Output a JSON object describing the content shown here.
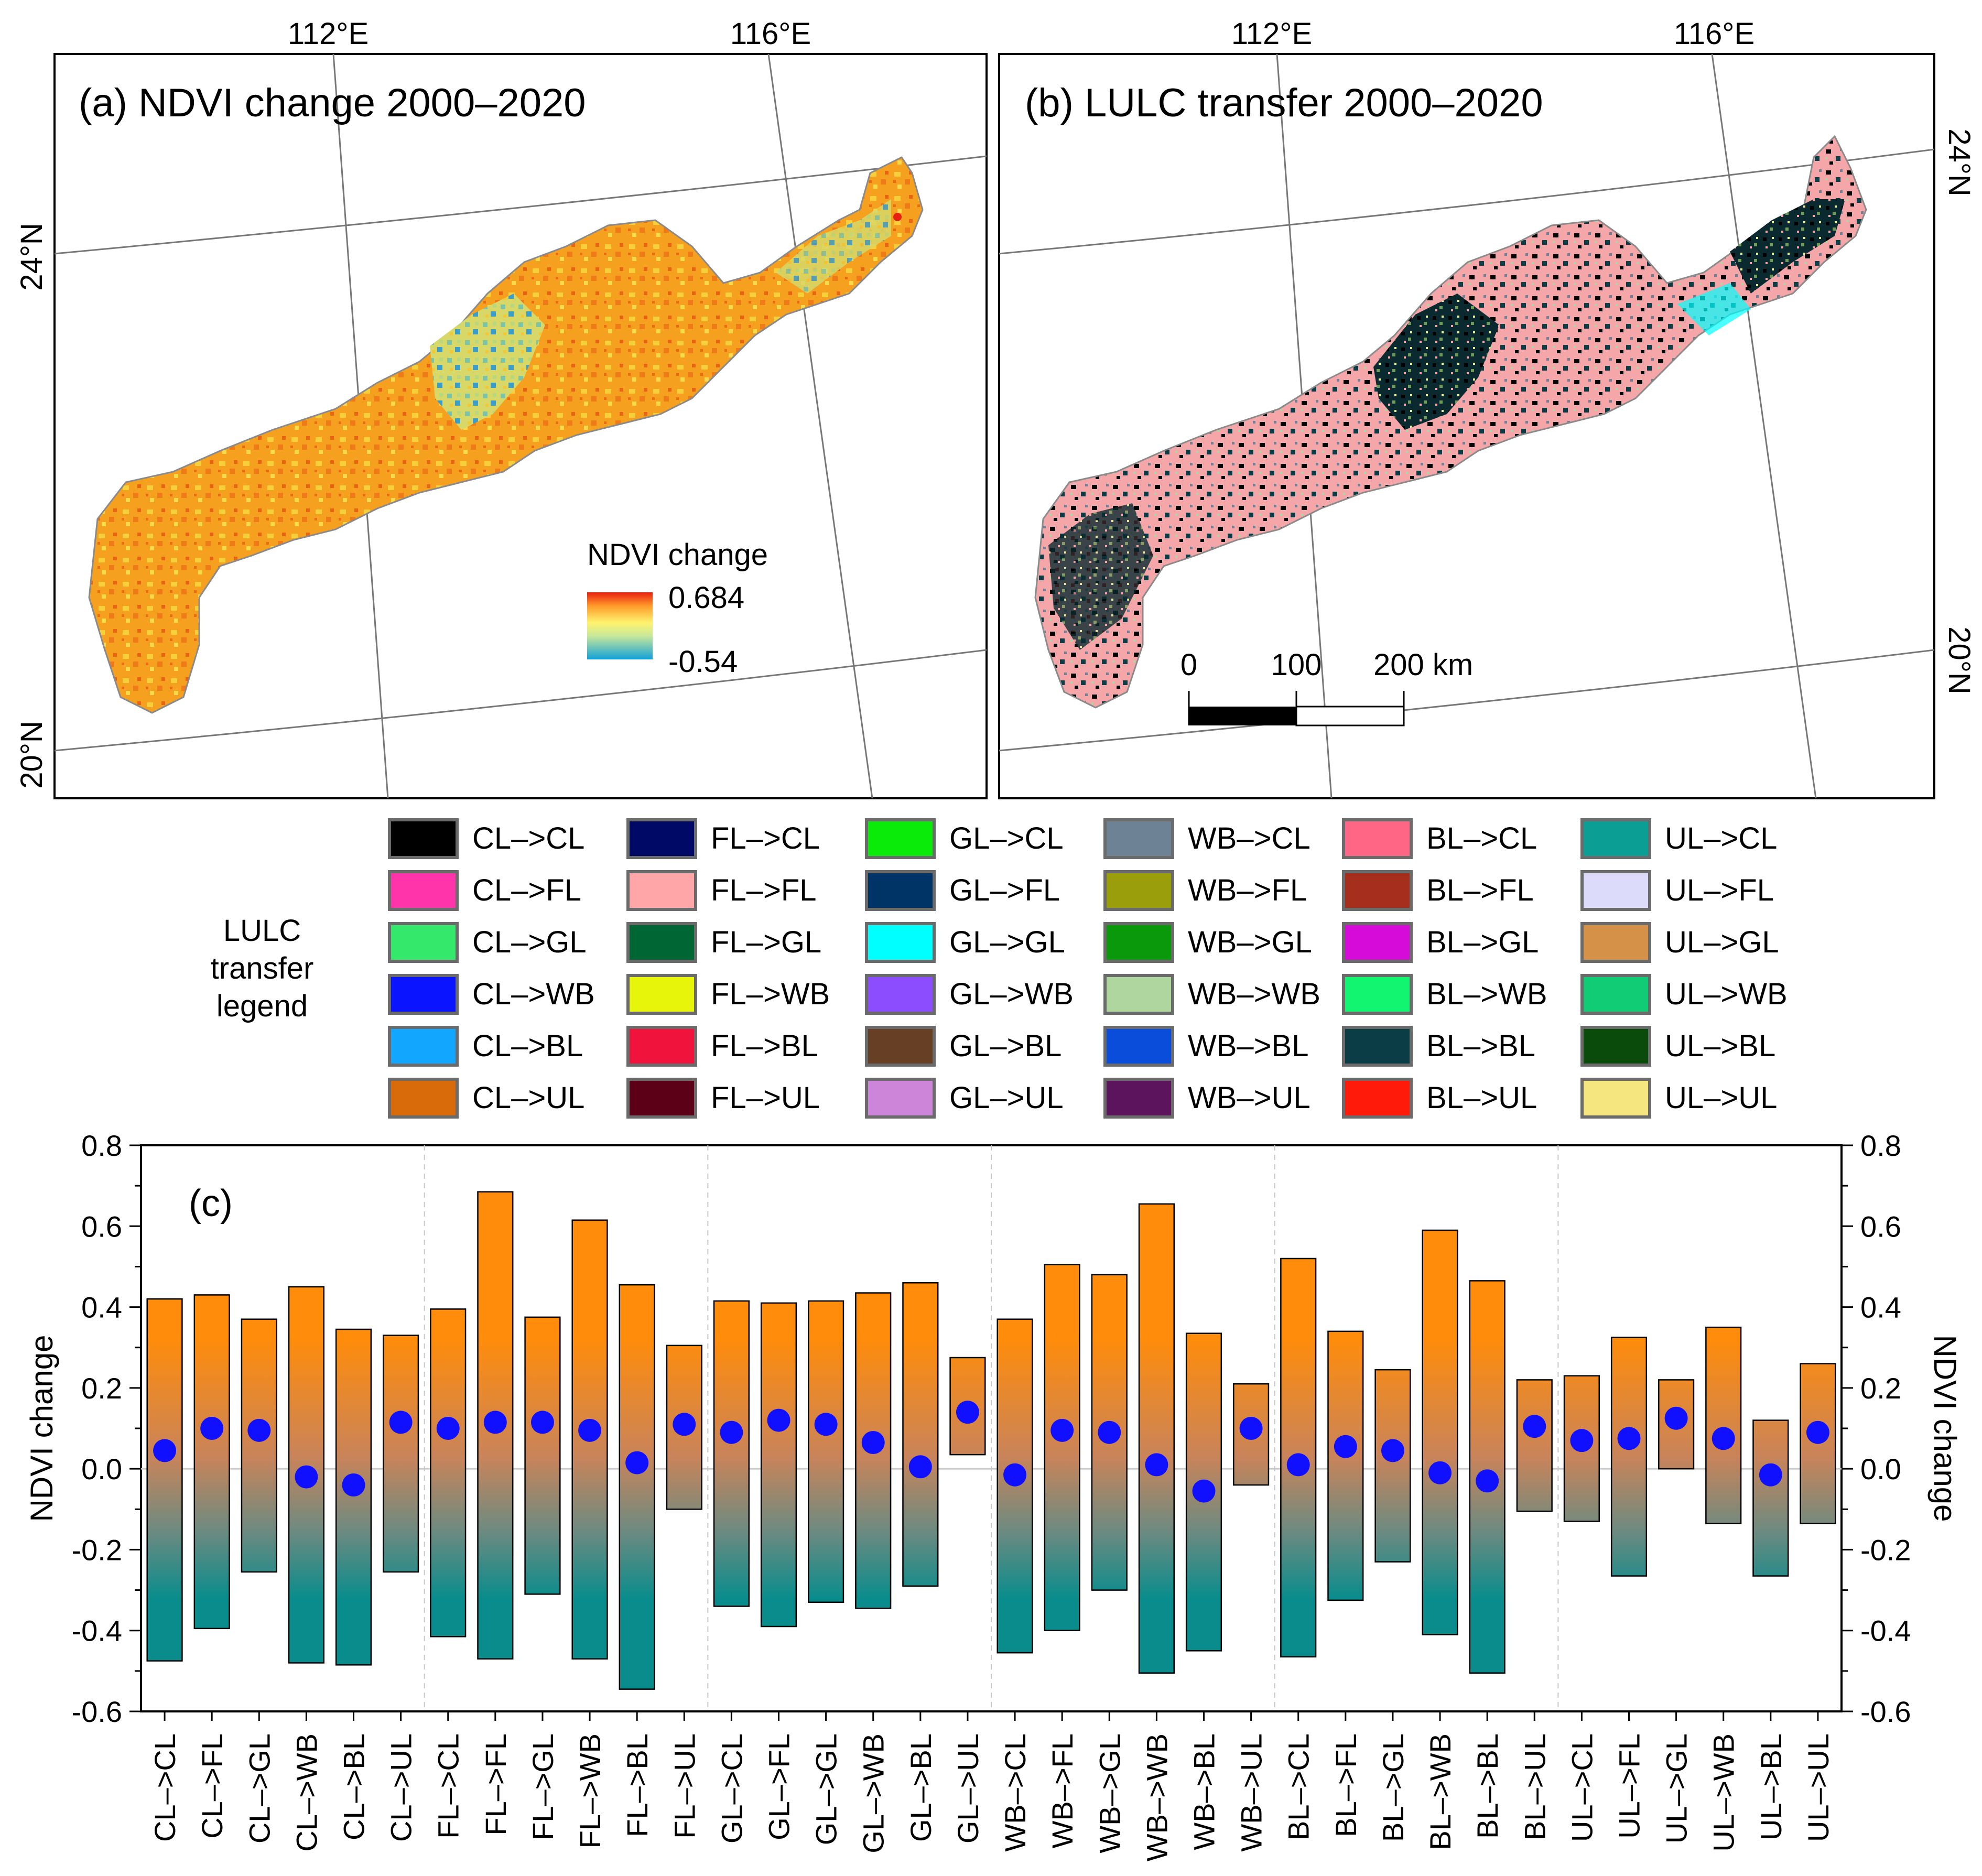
{
  "panel_a": {
    "title": "(a) NDVI change 2000–2020",
    "lon_labels": [
      "112°E",
      "116°E"
    ],
    "lat_labels": [
      "24°N",
      "20°N"
    ],
    "colorbar": {
      "title": "NDVI change",
      "max_label": "0.684",
      "min_label": "-0.54"
    }
  },
  "panel_b": {
    "title": "(b) LULC transfer 2000–2020",
    "lon_labels": [
      "112°E",
      "116°E"
    ],
    "lat_labels": [
      "24°N",
      "20°N"
    ],
    "scalebar": {
      "labels": [
        "0",
        "100",
        "200 km"
      ]
    }
  },
  "legend": {
    "title_lines": [
      "LULC",
      "transfer",
      "legend"
    ],
    "columns": [
      [
        {
          "label": "CL–>CL",
          "color": "#000000"
        },
        {
          "label": "CL–>FL",
          "color": "#ff33aa"
        },
        {
          "label": "CL–>GL",
          "color": "#33e86a"
        },
        {
          "label": "CL–>WB",
          "color": "#0a14ff"
        },
        {
          "label": "CL–>BL",
          "color": "#12a6ff"
        },
        {
          "label": "CL–>UL",
          "color": "#d96b0a"
        }
      ],
      [
        {
          "label": "FL–>CL",
          "color": "#000a66"
        },
        {
          "label": "FL–>FL",
          "color": "#ffa6a8"
        },
        {
          "label": "FL–>GL",
          "color": "#006633"
        },
        {
          "label": "FL–>WB",
          "color": "#e6f50a"
        },
        {
          "label": "FL–>BL",
          "color": "#f0143c"
        },
        {
          "label": "FL–>UL",
          "color": "#5c0018"
        }
      ],
      [
        {
          "label": "GL–>CL",
          "color": "#0aeb0a"
        },
        {
          "label": "GL–>FL",
          "color": "#003366"
        },
        {
          "label": "GL–>GL",
          "color": "#00ffff"
        },
        {
          "label": "GL–>WB",
          "color": "#8c4dff"
        },
        {
          "label": "GL–>BL",
          "color": "#663f24"
        },
        {
          "label": "GL–>UL",
          "color": "#cc85d9"
        }
      ],
      [
        {
          "label": "WB–>CL",
          "color": "#6e8296"
        },
        {
          "label": "WB–>FL",
          "color": "#999e0a"
        },
        {
          "label": "WB–>GL",
          "color": "#0a990a"
        },
        {
          "label": "WB–>WB",
          "color": "#b0d6a0"
        },
        {
          "label": "WB–>BL",
          "color": "#0a4ddb"
        },
        {
          "label": "WB–>UL",
          "color": "#5c145c"
        }
      ],
      [
        {
          "label": "BL–>CL",
          "color": "#ff6685"
        },
        {
          "label": "BL–>FL",
          "color": "#a62e1c"
        },
        {
          "label": "BL–>GL",
          "color": "#d60ad9"
        },
        {
          "label": "BL–>WB",
          "color": "#12f570"
        },
        {
          "label": "BL–>BL",
          "color": "#0a3d45"
        },
        {
          "label": "BL–>UL",
          "color": "#ff1a0a"
        }
      ],
      [
        {
          "label": "UL–>CL",
          "color": "#0a9e94"
        },
        {
          "label": "UL–>FL",
          "color": "#dcdcfa"
        },
        {
          "label": "UL–>GL",
          "color": "#d49147"
        },
        {
          "label": "UL–>WB",
          "color": "#12cc75"
        },
        {
          "label": "UL–>BL",
          "color": "#0a4a0a"
        },
        {
          "label": "UL–>UL",
          "color": "#f5e680"
        }
      ]
    ]
  },
  "chart_data": {
    "type": "bar",
    "panel_label": "(c)",
    "ylabel": "NDVI change",
    "ylabel_right": "NDVI change",
    "ylim": [
      -0.6,
      0.8
    ],
    "yticks": [
      "-0.6",
      "-0.4",
      "-0.2",
      "0.0",
      "0.2",
      "0.4",
      "0.6",
      "0.8"
    ],
    "categories": [
      "CL–>CL",
      "CL–>FL",
      "CL–>GL",
      "CL–>WB",
      "CL–>BL",
      "CL–>UL",
      "FL–>CL",
      "FL–>FL",
      "FL–>GL",
      "FL–>WB",
      "FL–>BL",
      "FL–>UL",
      "GL–>CL",
      "GL–>FL",
      "GL–>GL",
      "GL–>WB",
      "GL–>BL",
      "GL–>UL",
      "WB–>CL",
      "WB–>FL",
      "WB–>GL",
      "WB–>WB",
      "WB–>BL",
      "WB–>UL",
      "BL–>CL",
      "BL–>FL",
      "BL–>GL",
      "BL–>WB",
      "BL–>BL",
      "BL–>UL",
      "UL–>CL",
      "UL–>FL",
      "UL–>GL",
      "UL–>WB",
      "UL–>BL",
      "UL–>UL"
    ],
    "max": [
      0.42,
      0.43,
      0.37,
      0.45,
      0.345,
      0.33,
      0.395,
      0.685,
      0.375,
      0.615,
      0.455,
      0.305,
      0.415,
      0.41,
      0.415,
      0.435,
      0.46,
      0.275,
      0.37,
      0.505,
      0.48,
      0.655,
      0.335,
      0.21,
      0.52,
      0.34,
      0.245,
      0.59,
      0.465,
      0.22,
      0.23,
      0.325,
      0.22,
      0.35,
      0.12,
      0.26
    ],
    "min": [
      -0.475,
      -0.395,
      -0.255,
      -0.48,
      -0.485,
      -0.255,
      -0.415,
      -0.47,
      -0.31,
      -0.47,
      -0.545,
      -0.1,
      -0.34,
      -0.39,
      -0.33,
      -0.345,
      -0.29,
      0.035,
      -0.455,
      -0.4,
      -0.3,
      -0.505,
      -0.45,
      -0.04,
      -0.465,
      -0.325,
      -0.23,
      -0.41,
      -0.505,
      -0.105,
      -0.13,
      -0.265,
      0.0,
      -0.135,
      -0.265,
      -0.135
    ],
    "mean": [
      0.045,
      0.1,
      0.095,
      -0.02,
      -0.04,
      0.115,
      0.1,
      0.115,
      0.115,
      0.095,
      0.015,
      0.11,
      0.09,
      0.12,
      0.11,
      0.065,
      0.005,
      0.14,
      -0.015,
      0.095,
      0.09,
      0.01,
      -0.055,
      0.1,
      0.01,
      0.055,
      0.045,
      -0.01,
      -0.03,
      0.105,
      0.07,
      0.075,
      0.125,
      0.075,
      -0.015,
      0.09
    ],
    "colors": {
      "high": "#ff8c0a",
      "low": "#0a8c8c",
      "mean_marker": "#1010ff"
    }
  }
}
